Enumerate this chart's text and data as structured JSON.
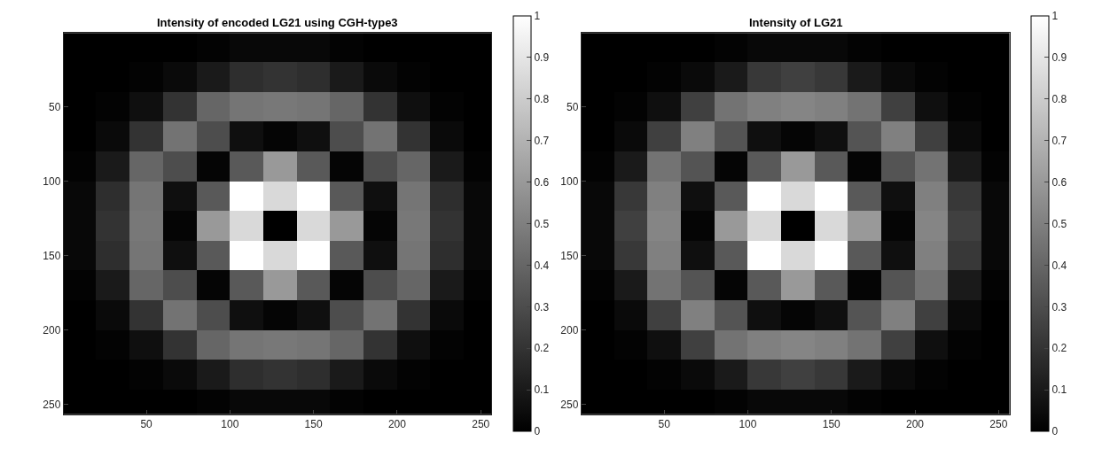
{
  "chart_data": [
    {
      "type": "heatmap",
      "title": "Intensity of encoded LG21 using CGH-type3",
      "x": [
        10,
        30,
        50,
        70,
        90,
        110,
        130,
        150,
        170,
        190,
        210,
        230,
        250
      ],
      "y": [
        10,
        30,
        50,
        70,
        90,
        110,
        130,
        150,
        170,
        190,
        210,
        230,
        250
      ],
      "cells": [
        [
          0,
          0,
          0,
          0,
          0.01,
          0.03,
          0.03,
          0.03,
          0.01,
          0,
          0,
          0,
          0
        ],
        [
          0,
          0,
          0.01,
          0.04,
          0.1,
          0.18,
          0.2,
          0.18,
          0.1,
          0.04,
          0.01,
          0,
          0
        ],
        [
          0,
          0.01,
          0.06,
          0.2,
          0.4,
          0.46,
          0.47,
          0.46,
          0.4,
          0.2,
          0.06,
          0.01,
          0
        ],
        [
          0,
          0.04,
          0.2,
          0.45,
          0.3,
          0.06,
          0.02,
          0.06,
          0.3,
          0.45,
          0.2,
          0.04,
          0
        ],
        [
          0.01,
          0.1,
          0.4,
          0.3,
          0.02,
          0.35,
          0.6,
          0.35,
          0.02,
          0.3,
          0.4,
          0.1,
          0.01
        ],
        [
          0.03,
          0.18,
          0.46,
          0.06,
          0.35,
          1,
          0.85,
          1,
          0.35,
          0.06,
          0.46,
          0.18,
          0.03
        ],
        [
          0.03,
          0.2,
          0.47,
          0.02,
          0.6,
          0.85,
          0,
          0.85,
          0.6,
          0.02,
          0.47,
          0.2,
          0.03
        ],
        [
          0.03,
          0.18,
          0.46,
          0.06,
          0.35,
          1,
          0.85,
          1,
          0.35,
          0.06,
          0.46,
          0.18,
          0.03
        ],
        [
          0.01,
          0.1,
          0.4,
          0.3,
          0.02,
          0.35,
          0.6,
          0.35,
          0.02,
          0.3,
          0.4,
          0.1,
          0.01
        ],
        [
          0,
          0.04,
          0.2,
          0.45,
          0.3,
          0.06,
          0.02,
          0.06,
          0.3,
          0.45,
          0.2,
          0.04,
          0
        ],
        [
          0,
          0.01,
          0.06,
          0.2,
          0.4,
          0.46,
          0.47,
          0.46,
          0.4,
          0.2,
          0.06,
          0.01,
          0
        ],
        [
          0,
          0,
          0.01,
          0.04,
          0.1,
          0.18,
          0.2,
          0.18,
          0.1,
          0.04,
          0.01,
          0,
          0
        ],
        [
          0,
          0,
          0,
          0,
          0.01,
          0.03,
          0.03,
          0.03,
          0.01,
          0,
          0,
          0,
          0
        ]
      ],
      "xlim": [
        0.5,
        256.5
      ],
      "xticks": [
        50,
        100,
        150,
        200,
        250
      ],
      "ylim": [
        256.5,
        0.5
      ],
      "yticks": [
        50,
        100,
        150,
        200,
        250
      ],
      "clim": [
        0,
        1
      ],
      "cticks": [
        0,
        0.1,
        0.2,
        0.3,
        0.4,
        0.5,
        0.6,
        0.7,
        0.8,
        0.9,
        1
      ]
    },
    {
      "type": "heatmap",
      "title": "Intensity of LG21",
      "x": [
        10,
        30,
        50,
        70,
        90,
        110,
        130,
        150,
        170,
        190,
        210,
        230,
        250
      ],
      "y": [
        10,
        30,
        50,
        70,
        90,
        110,
        130,
        150,
        170,
        190,
        210,
        230,
        250
      ],
      "cells": [
        [
          0,
          0,
          0,
          0,
          0.01,
          0.03,
          0.03,
          0.03,
          0.01,
          0,
          0,
          0,
          0
        ],
        [
          0,
          0,
          0.01,
          0.04,
          0.1,
          0.22,
          0.25,
          0.22,
          0.1,
          0.04,
          0.01,
          0,
          0
        ],
        [
          0,
          0.01,
          0.06,
          0.25,
          0.45,
          0.5,
          0.52,
          0.5,
          0.45,
          0.25,
          0.06,
          0.01,
          0
        ],
        [
          0,
          0.04,
          0.25,
          0.5,
          0.33,
          0.06,
          0.02,
          0.06,
          0.33,
          0.5,
          0.25,
          0.04,
          0
        ],
        [
          0.01,
          0.1,
          0.45,
          0.33,
          0.02,
          0.35,
          0.6,
          0.35,
          0.02,
          0.33,
          0.45,
          0.1,
          0.01
        ],
        [
          0.03,
          0.22,
          0.5,
          0.06,
          0.35,
          1,
          0.85,
          1,
          0.35,
          0.06,
          0.5,
          0.22,
          0.03
        ],
        [
          0.03,
          0.25,
          0.52,
          0.02,
          0.6,
          0.85,
          0,
          0.85,
          0.6,
          0.02,
          0.52,
          0.25,
          0.03
        ],
        [
          0.03,
          0.22,
          0.5,
          0.06,
          0.35,
          1,
          0.85,
          1,
          0.35,
          0.06,
          0.5,
          0.22,
          0.03
        ],
        [
          0.01,
          0.1,
          0.45,
          0.33,
          0.02,
          0.35,
          0.6,
          0.35,
          0.02,
          0.33,
          0.45,
          0.1,
          0.01
        ],
        [
          0,
          0.04,
          0.25,
          0.5,
          0.33,
          0.06,
          0.02,
          0.06,
          0.33,
          0.5,
          0.25,
          0.04,
          0
        ],
        [
          0,
          0.01,
          0.06,
          0.25,
          0.45,
          0.5,
          0.52,
          0.5,
          0.45,
          0.25,
          0.06,
          0.01,
          0
        ],
        [
          0,
          0,
          0.01,
          0.04,
          0.1,
          0.22,
          0.25,
          0.22,
          0.1,
          0.04,
          0.01,
          0,
          0
        ],
        [
          0,
          0,
          0,
          0,
          0.01,
          0.03,
          0.03,
          0.03,
          0.01,
          0,
          0,
          0,
          0
        ]
      ],
      "xlim": [
        0.5,
        256.5
      ],
      "xticks": [
        50,
        100,
        150,
        200,
        250
      ],
      "ylim": [
        256.5,
        0.5
      ],
      "yticks": [
        50,
        100,
        150,
        200,
        250
      ],
      "clim": [
        0,
        1
      ],
      "cticks": [
        0,
        0.1,
        0.2,
        0.3,
        0.4,
        0.5,
        0.6,
        0.7,
        0.8,
        0.9,
        1
      ]
    }
  ]
}
